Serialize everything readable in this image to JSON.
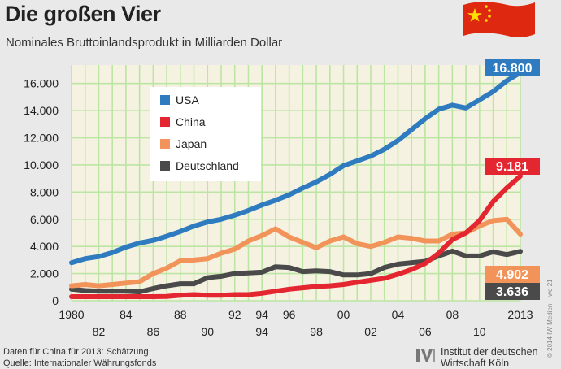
{
  "chart_data": {
    "type": "line",
    "title": "Die großen Vier",
    "subtitle": "Nominales Bruttoinlandsprodukt in Milliarden Dollar",
    "xlabel": "",
    "ylabel": "",
    "xlim": [
      1980,
      2013
    ],
    "ylim": [
      0,
      17000
    ],
    "yticks": [
      "0",
      "2.000",
      "4.000",
      "6.000",
      "8.000",
      "10.000",
      "12.000",
      "14.000",
      "16.000"
    ],
    "xticks_top": [
      "1980",
      "84",
      "88",
      "92",
      "94",
      "96",
      "00",
      "04",
      "08",
      "2013"
    ],
    "xticks_bottom": [
      "82",
      "86",
      "90",
      "94",
      "98",
      "02",
      "06",
      "10"
    ],
    "grid": true,
    "legend_position": "top-left",
    "x": [
      1980,
      1981,
      1982,
      1983,
      1984,
      1985,
      1986,
      1987,
      1988,
      1989,
      1990,
      1991,
      1992,
      1993,
      1994,
      1995,
      1996,
      1997,
      1998,
      1999,
      2000,
      2001,
      2002,
      2003,
      2004,
      2005,
      2006,
      2007,
      2008,
      2009,
      2010,
      2011,
      2012,
      2013
    ],
    "series": [
      {
        "name": "USA",
        "color": "#2f7bc0",
        "values": [
          2800,
          3100,
          3250,
          3550,
          3950,
          4250,
          4450,
          4750,
          5100,
          5500,
          5800,
          6000,
          6300,
          6650,
          7050,
          7400,
          7800,
          8300,
          8750,
          9300,
          9950,
          10300,
          10650,
          11150,
          11800,
          12600,
          13400,
          14100,
          14400,
          14200,
          14800,
          15400,
          16200,
          16800
        ]
      },
      {
        "name": "China",
        "color": "#e3262f",
        "values": [
          300,
          300,
          300,
          300,
          300,
          300,
          300,
          320,
          400,
          450,
          400,
          400,
          450,
          450,
          550,
          700,
          850,
          950,
          1050,
          1100,
          1200,
          1350,
          1500,
          1650,
          1950,
          2300,
          2750,
          3500,
          4500,
          5000,
          5900,
          7300,
          8300,
          9181
        ]
      },
      {
        "name": "Japan",
        "color": "#f2935a",
        "values": [
          1100,
          1200,
          1100,
          1200,
          1300,
          1400,
          2000,
          2400,
          2950,
          3000,
          3100,
          3500,
          3800,
          4400,
          4800,
          5300,
          4700,
          4300,
          3900,
          4400,
          4700,
          4200,
          4000,
          4300,
          4700,
          4600,
          4400,
          4400,
          4900,
          5000,
          5500,
          5900,
          6000,
          4902
        ]
      },
      {
        "name": "Deutschland",
        "color": "#4a4a4a",
        "values": [
          850,
          750,
          700,
          700,
          700,
          650,
          900,
          1100,
          1250,
          1250,
          1700,
          1800,
          2000,
          2050,
          2100,
          2500,
          2450,
          2150,
          2200,
          2150,
          1900,
          1900,
          2000,
          2450,
          2700,
          2800,
          2900,
          3300,
          3650,
          3300,
          3300,
          3600,
          3400,
          3636
        ]
      }
    ],
    "end_labels": [
      {
        "series": "USA",
        "text": "16.800",
        "bg": "#2f7bc0"
      },
      {
        "series": "China",
        "text": "9.181",
        "bg": "#e3262f"
      },
      {
        "series": "Japan",
        "text": "4.902",
        "bg": "#f2935a"
      },
      {
        "series": "Deutschland",
        "text": "3.636",
        "bg": "#4a4a4a"
      }
    ]
  },
  "footnote": [
    "Daten für China für 2013: Schätzung",
    "Quelle: Internationaler Währungsfonds"
  ],
  "publisher": [
    "Institut der deutschen",
    "Wirtschaft Köln"
  ],
  "credit": "© 2014 IW Medien · iwd 21",
  "colors": {
    "plot_bg": "#f6f2e2",
    "grid": "#bce5a4",
    "page_bg": "#e9e9e9",
    "flag_red": "#de2910",
    "flag_star": "#ffde00"
  }
}
